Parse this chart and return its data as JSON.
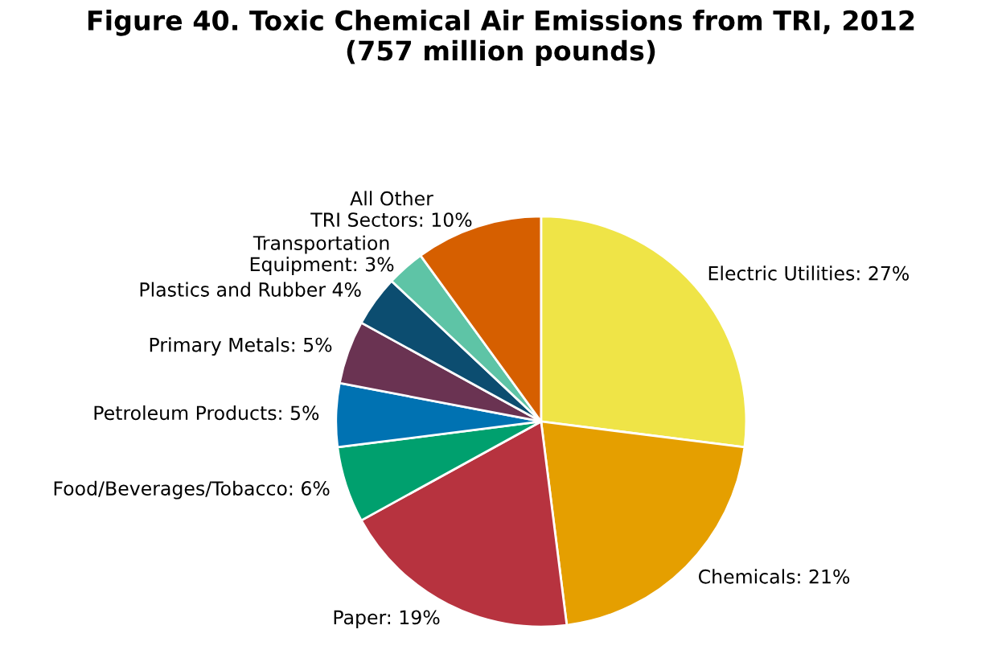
{
  "chart_data": {
    "type": "pie",
    "title": "Figure 40. Toxic Chemical Air Emissions from TRI, 2012\n(757 million pounds)",
    "categories": [
      "Electric Utilities: 27%",
      "Chemicals: 21%",
      "Paper: 19%",
      "Food/Beverages/Tobacco: 6%",
      "Petroleum Products: 5%",
      "Primary Metals: 5%",
      "Plastics and Rubber 4%",
      "Transportation\nEquipment: 3%",
      "All Other\nTRI Sectors: 10%"
    ],
    "values": [
      27,
      21,
      19,
      6,
      5,
      5,
      4,
      3,
      10
    ],
    "colors": [
      "#efe447",
      "#e59f00",
      "#b7333f",
      "#00a06e",
      "#0072b2",
      "#6a3352",
      "#0c4d70",
      "#5ec4a6",
      "#d65f00"
    ],
    "legend": false
  }
}
